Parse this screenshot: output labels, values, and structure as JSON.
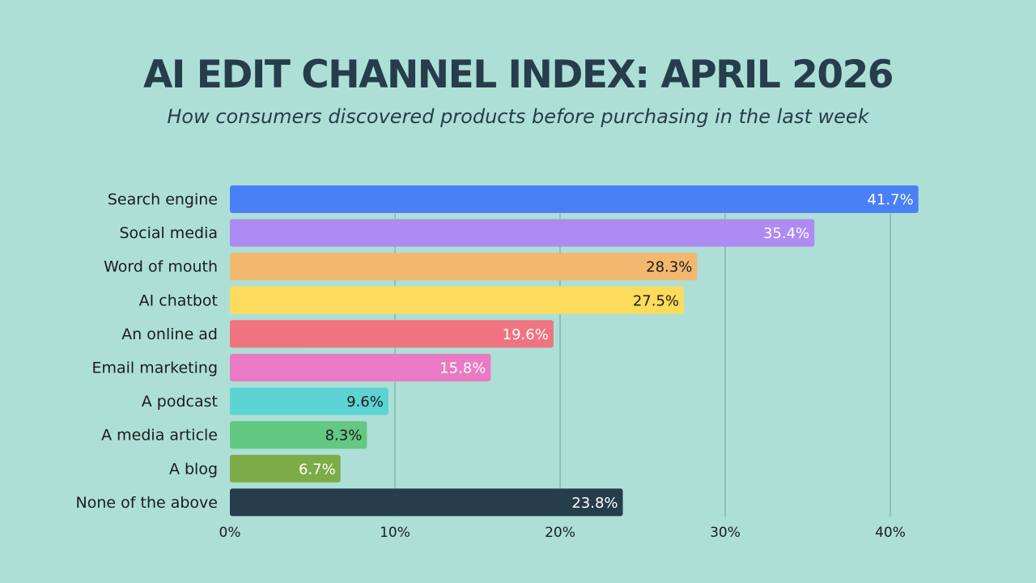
{
  "header": {
    "title": "AI EDIT CHANNEL INDEX: APRIL 2026",
    "subtitle": "How consumers discovered products before purchasing in the last week"
  },
  "chart_data": {
    "type": "bar",
    "orientation": "horizontal",
    "title": "AI EDIT CHANNEL INDEX: APRIL 2026",
    "subtitle": "How consumers discovered products before purchasing in the last week",
    "xlabel": "",
    "ylabel": "",
    "xlim": [
      0,
      40
    ],
    "x_ticks": [
      0,
      10,
      20,
      30,
      40
    ],
    "x_tick_labels": [
      "0%",
      "10%",
      "20%",
      "30%",
      "40%"
    ],
    "grid": "vertical",
    "legend": "none",
    "categories": [
      "Search engine",
      "Social media",
      "Word of mouth",
      "AI chatbot",
      "An online ad",
      "Email marketing",
      "A podcast",
      "A media article",
      "A blog",
      "None of the above"
    ],
    "values": [
      41.7,
      35.4,
      28.3,
      27.5,
      19.6,
      15.8,
      9.6,
      8.3,
      6.7,
      23.8
    ],
    "value_labels": [
      "41.7%",
      "35.4%",
      "28.3%",
      "27.5%",
      "19.6%",
      "15.8%",
      "9.6%",
      "8.3%",
      "6.7%",
      "23.8%"
    ],
    "colors": [
      "#4a80f6",
      "#ae8af3",
      "#f3b86f",
      "#fddb5c",
      "#ef7480",
      "#ea7ac3",
      "#5dd3d3",
      "#62c882",
      "#7dab47",
      "#263d4c"
    ],
    "label_colors": [
      "#ffffff",
      "#ffffff",
      "#1c1c1c",
      "#1c1c1c",
      "#ffffff",
      "#ffffff",
      "#1c1c1c",
      "#1c1c1c",
      "#ffffff",
      "#ffffff"
    ]
  }
}
